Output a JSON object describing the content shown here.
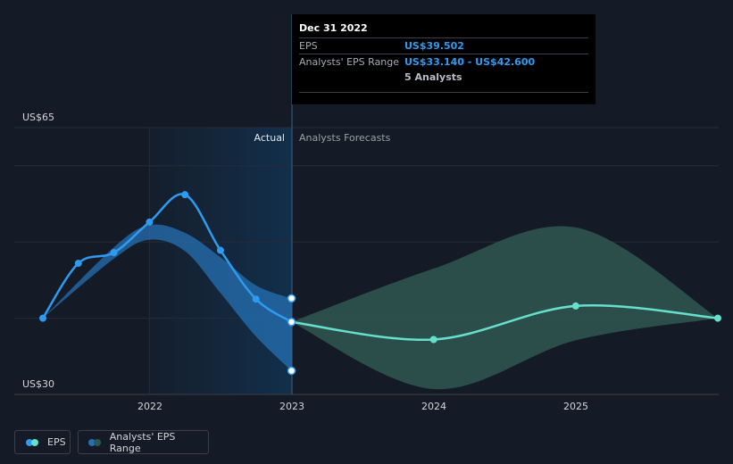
{
  "tooltip": {
    "date": "Dec 31 2022",
    "eps_label": "EPS",
    "eps_value": "US$39.502",
    "range_label": "Analysts' EPS Range",
    "range_value": "US$33.140 - US$42.600",
    "analysts": "5 Analysts"
  },
  "legend": {
    "eps": "EPS",
    "range": "Analysts' EPS Range"
  },
  "colors": {
    "background": "#151b26",
    "actual_line": "#2f9bf0",
    "forecast_line": "#66e0cc",
    "forecast_band": "#2f5751",
    "past_band": "#2570b3"
  },
  "chart_data": {
    "type": "line",
    "ylim": [
      30,
      65
    ],
    "xlim": [
      2021.25,
      2026.0
    ],
    "y_tick_labels": [
      {
        "value": 65,
        "label": "US$65"
      },
      {
        "value": 30,
        "label": "US$30"
      }
    ],
    "x_tick_labels": [
      {
        "value": 2022,
        "label": "2022"
      },
      {
        "value": 2023,
        "label": "2023"
      },
      {
        "value": 2024,
        "label": "2024"
      },
      {
        "value": 2025,
        "label": "2025"
      }
    ],
    "gridlines_y": [
      65,
      60,
      50,
      40,
      30
    ],
    "divider_x": 2023,
    "region_labels": {
      "actual": "Actual",
      "forecast": "Analysts Forecasts"
    },
    "series": [
      {
        "name": "EPS",
        "role": "actual",
        "points": [
          [
            2021.25,
            40.0
          ],
          [
            2021.5,
            47.2
          ],
          [
            2021.75,
            48.6
          ],
          [
            2022.0,
            52.6
          ],
          [
            2022.25,
            56.2
          ],
          [
            2022.5,
            48.9
          ],
          [
            2022.75,
            42.5
          ],
          [
            2023.0,
            39.5
          ]
        ]
      },
      {
        "name": "Forecast EPS",
        "role": "forecast",
        "points": [
          [
            2023.0,
            39.5
          ],
          [
            2024.0,
            37.2
          ],
          [
            2025.0,
            41.6
          ],
          [
            2026.0,
            40.0
          ]
        ]
      }
    ],
    "past_band": {
      "upper": [
        [
          2021.25,
          40.0
        ],
        [
          2021.75,
          49.3
        ],
        [
          2022.0,
          52.2
        ],
        [
          2022.25,
          51.2
        ],
        [
          2022.5,
          48.0
        ],
        [
          2022.75,
          44.3
        ],
        [
          2023.0,
          42.6
        ]
      ],
      "lower": [
        [
          2021.25,
          40.0
        ],
        [
          2021.75,
          47.8
        ],
        [
          2022.0,
          50.3
        ],
        [
          2022.25,
          48.8
        ],
        [
          2022.5,
          43.3
        ],
        [
          2022.75,
          37.6
        ],
        [
          2023.0,
          33.1
        ]
      ]
    },
    "forecast_band": {
      "upper": [
        [
          2023.0,
          39.5
        ],
        [
          2024.0,
          46.5
        ],
        [
          2025.0,
          51.9
        ],
        [
          2026.0,
          40.0
        ]
      ],
      "lower": [
        [
          2023.0,
          39.5
        ],
        [
          2024.0,
          30.7
        ],
        [
          2025.0,
          37.1
        ],
        [
          2026.0,
          40.0
        ]
      ]
    },
    "highlight_points": [
      {
        "x": 2023.0,
        "y": 42.6
      },
      {
        "x": 2023.0,
        "y": 39.5
      },
      {
        "x": 2023.0,
        "y": 33.1
      }
    ]
  }
}
